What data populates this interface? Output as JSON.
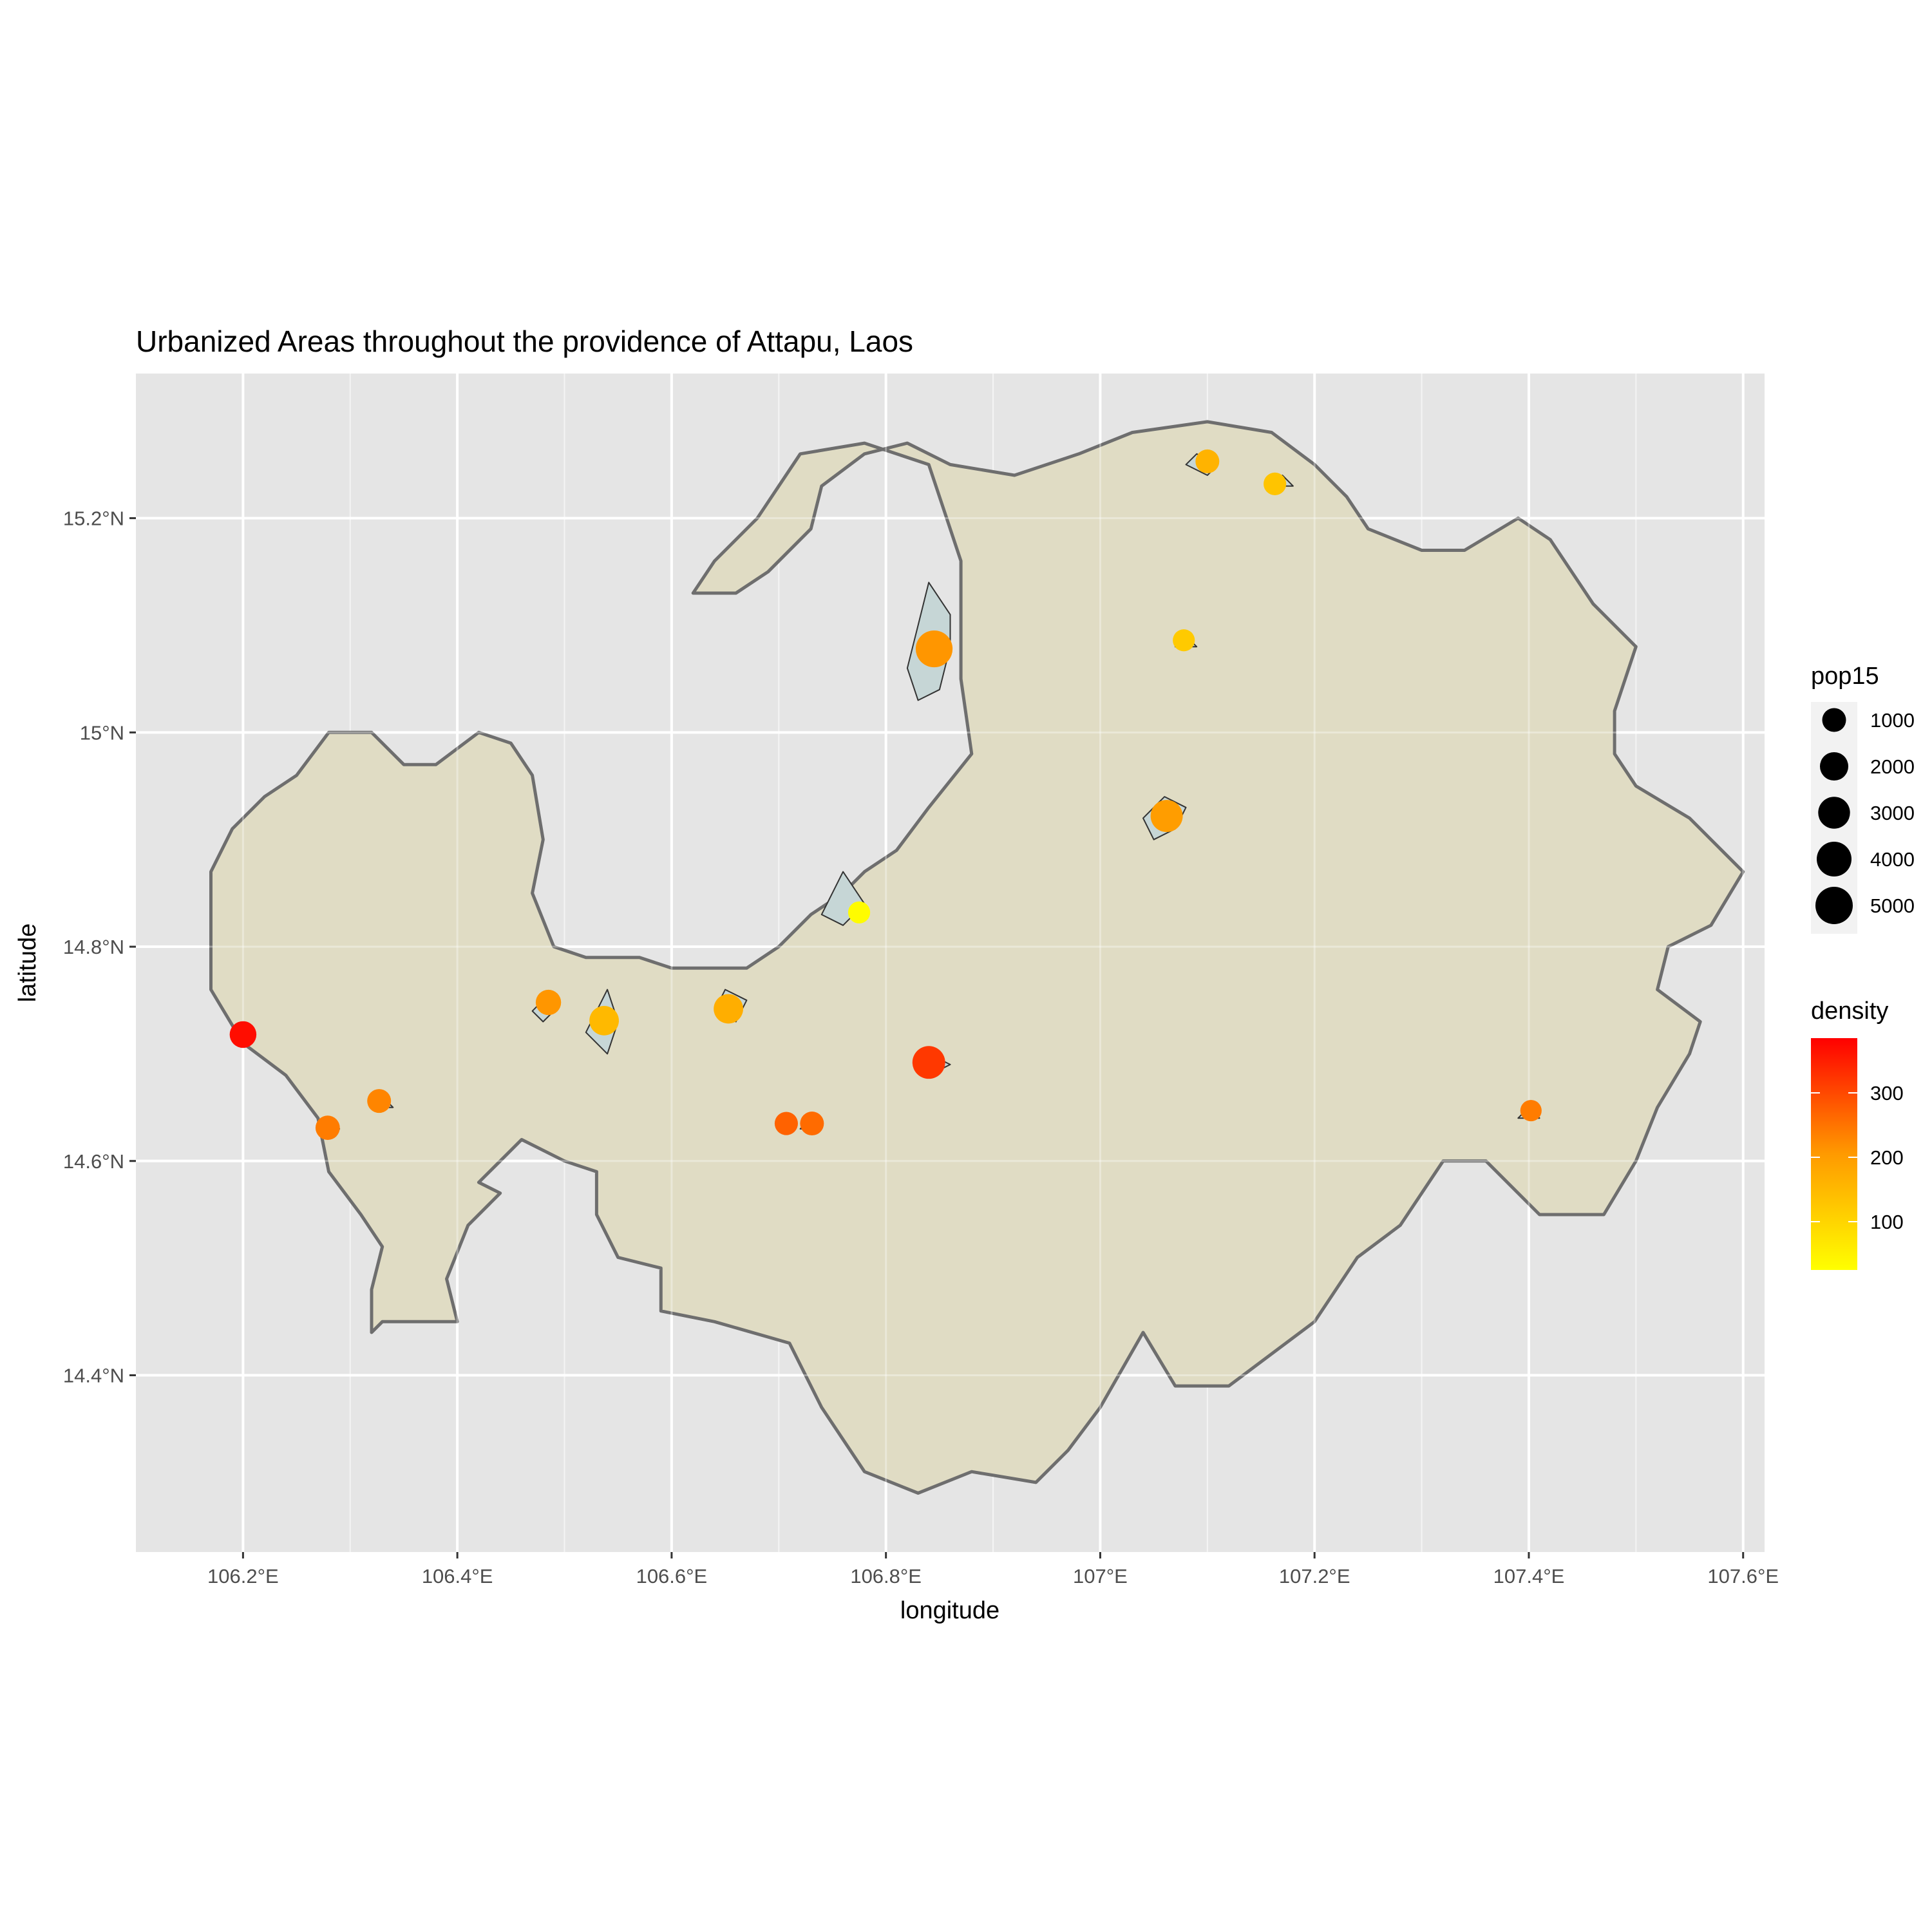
{
  "chart_data": {
    "type": "scatter",
    "title": "Urbanized Areas throughout the providence of Attapu, Laos",
    "xlabel": "longitude",
    "ylabel": "latitude",
    "xlim": [
      106.1,
      107.62
    ],
    "ylim": [
      14.235,
      15.335
    ],
    "x_ticks": [
      {
        "value": 106.2,
        "label": "106.2°E"
      },
      {
        "value": 106.4,
        "label": "106.4°E"
      },
      {
        "value": 106.6,
        "label": "106.6°E"
      },
      {
        "value": 106.8,
        "label": "106.8°E"
      },
      {
        "value": 107.0,
        "label": "107°E"
      },
      {
        "value": 107.2,
        "label": "107.2°E"
      },
      {
        "value": 107.4,
        "label": "107.4°E"
      },
      {
        "value": 107.6,
        "label": "107.6°E"
      }
    ],
    "y_ticks": [
      {
        "value": 14.4,
        "label": "14.4°N"
      },
      {
        "value": 14.6,
        "label": "14.6°N"
      },
      {
        "value": 14.8,
        "label": "14.8°N"
      },
      {
        "value": 15.0,
        "label": "15°N"
      },
      {
        "value": 15.2,
        "label": "15.2°N"
      }
    ],
    "grid": true,
    "colors": {
      "panel_background": "#e5e5e5",
      "grid": "#ffffff",
      "province_fill": "#e0dcc4",
      "province_border": "#6e6e6e",
      "urban_fill": "#c6d6d6",
      "urban_border": "#333333",
      "density_low": "#ffff00",
      "density_high": "#ff0000"
    },
    "province_outline": [
      [
        106.32,
        14.44
      ],
      [
        106.33,
        14.45
      ],
      [
        106.36,
        14.45
      ],
      [
        106.4,
        14.45
      ],
      [
        106.39,
        14.49
      ],
      [
        106.41,
        14.54
      ],
      [
        106.43,
        14.56
      ],
      [
        106.44,
        14.57
      ],
      [
        106.42,
        14.58
      ],
      [
        106.44,
        14.6
      ],
      [
        106.46,
        14.62
      ],
      [
        106.5,
        14.6
      ],
      [
        106.53,
        14.59
      ],
      [
        106.53,
        14.55
      ],
      [
        106.55,
        14.51
      ],
      [
        106.59,
        14.5
      ],
      [
        106.59,
        14.46
      ],
      [
        106.64,
        14.45
      ],
      [
        106.71,
        14.43
      ],
      [
        106.74,
        14.37
      ],
      [
        106.78,
        14.31
      ],
      [
        106.83,
        14.29
      ],
      [
        106.88,
        14.31
      ],
      [
        106.94,
        14.3
      ],
      [
        106.97,
        14.33
      ],
      [
        107.0,
        14.37
      ],
      [
        107.04,
        14.44
      ],
      [
        107.07,
        14.39
      ],
      [
        107.12,
        14.39
      ],
      [
        107.16,
        14.42
      ],
      [
        107.2,
        14.45
      ],
      [
        107.24,
        14.51
      ],
      [
        107.28,
        14.54
      ],
      [
        107.32,
        14.6
      ],
      [
        107.36,
        14.6
      ],
      [
        107.41,
        14.55
      ],
      [
        107.47,
        14.55
      ],
      [
        107.5,
        14.6
      ],
      [
        107.52,
        14.65
      ],
      [
        107.55,
        14.7
      ],
      [
        107.56,
        14.73
      ],
      [
        107.52,
        14.76
      ],
      [
        107.53,
        14.8
      ],
      [
        107.57,
        14.82
      ],
      [
        107.6,
        14.87
      ],
      [
        107.58,
        14.89
      ],
      [
        107.55,
        14.92
      ],
      [
        107.5,
        14.95
      ],
      [
        107.48,
        14.98
      ],
      [
        107.48,
        15.02
      ],
      [
        107.5,
        15.08
      ],
      [
        107.46,
        15.12
      ],
      [
        107.42,
        15.18
      ],
      [
        107.39,
        15.2
      ],
      [
        107.34,
        15.17
      ],
      [
        107.3,
        15.17
      ],
      [
        107.25,
        15.19
      ],
      [
        107.23,
        15.22
      ],
      [
        107.2,
        15.25
      ],
      [
        107.16,
        15.28
      ],
      [
        107.1,
        15.29
      ],
      [
        107.03,
        15.28
      ],
      [
        106.98,
        15.26
      ],
      [
        106.92,
        15.24
      ],
      [
        106.86,
        15.25
      ],
      [
        106.82,
        15.27
      ],
      [
        106.78,
        15.26
      ],
      [
        106.74,
        15.23
      ],
      [
        106.73,
        15.19
      ],
      [
        106.69,
        15.15
      ],
      [
        106.66,
        15.13
      ],
      [
        106.62,
        15.13
      ],
      [
        106.64,
        15.16
      ],
      [
        106.68,
        15.2
      ],
      [
        106.7,
        15.23
      ],
      [
        106.72,
        15.26
      ],
      [
        106.78,
        15.27
      ],
      [
        106.84,
        15.25
      ],
      [
        106.87,
        15.16
      ],
      [
        106.87,
        15.05
      ],
      [
        106.88,
        14.98
      ],
      [
        106.84,
        14.93
      ],
      [
        106.81,
        14.89
      ],
      [
        106.78,
        14.87
      ],
      [
        106.76,
        14.85
      ],
      [
        106.73,
        14.83
      ],
      [
        106.7,
        14.8
      ],
      [
        106.67,
        14.78
      ],
      [
        106.64,
        14.78
      ],
      [
        106.6,
        14.78
      ],
      [
        106.57,
        14.79
      ],
      [
        106.52,
        14.79
      ],
      [
        106.49,
        14.8
      ],
      [
        106.47,
        14.85
      ],
      [
        106.48,
        14.9
      ],
      [
        106.47,
        14.96
      ],
      [
        106.45,
        14.99
      ],
      [
        106.42,
        15.0
      ],
      [
        106.38,
        14.97
      ],
      [
        106.35,
        14.97
      ],
      [
        106.32,
        15.0
      ],
      [
        106.28,
        15.0
      ],
      [
        106.25,
        14.96
      ],
      [
        106.22,
        14.94
      ],
      [
        106.19,
        14.91
      ],
      [
        106.17,
        14.87
      ],
      [
        106.17,
        14.82
      ],
      [
        106.17,
        14.76
      ],
      [
        106.2,
        14.71
      ],
      [
        106.24,
        14.68
      ],
      [
        106.27,
        14.64
      ],
      [
        106.28,
        14.59
      ],
      [
        106.31,
        14.55
      ],
      [
        106.33,
        14.52
      ],
      [
        106.32,
        14.48
      ],
      [
        106.32,
        14.44
      ]
    ],
    "urban_areas": [
      [
        [
          106.84,
          15.14
        ],
        [
          106.86,
          15.11
        ],
        [
          106.86,
          15.08
        ],
        [
          106.85,
          15.04
        ],
        [
          106.83,
          15.03
        ],
        [
          106.82,
          15.06
        ],
        [
          106.83,
          15.1
        ],
        [
          106.84,
          15.14
        ]
      ],
      [
        [
          107.06,
          14.94
        ],
        [
          107.08,
          14.93
        ],
        [
          107.07,
          14.91
        ],
        [
          107.05,
          14.9
        ],
        [
          107.04,
          14.92
        ],
        [
          107.06,
          14.94
        ]
      ],
      [
        [
          106.76,
          14.87
        ],
        [
          106.78,
          14.84
        ],
        [
          106.76,
          14.82
        ],
        [
          106.74,
          14.83
        ],
        [
          106.76,
          14.87
        ]
      ],
      [
        [
          106.65,
          14.76
        ],
        [
          106.67,
          14.75
        ],
        [
          106.66,
          14.73
        ],
        [
          106.64,
          14.74
        ],
        [
          106.65,
          14.76
        ]
      ],
      [
        [
          106.54,
          14.76
        ],
        [
          106.55,
          14.73
        ],
        [
          106.54,
          14.7
        ],
        [
          106.52,
          14.72
        ],
        [
          106.54,
          14.76
        ]
      ],
      [
        [
          106.48,
          14.75
        ],
        [
          106.49,
          14.74
        ],
        [
          106.48,
          14.73
        ],
        [
          106.47,
          14.74
        ],
        [
          106.48,
          14.75
        ]
      ],
      [
        [
          106.84,
          14.7
        ],
        [
          106.86,
          14.69
        ],
        [
          106.84,
          14.68
        ],
        [
          106.83,
          14.69
        ],
        [
          106.84,
          14.7
        ]
      ],
      [
        [
          107.09,
          15.26
        ],
        [
          107.11,
          15.25
        ],
        [
          107.1,
          15.24
        ],
        [
          107.08,
          15.25
        ],
        [
          107.09,
          15.26
        ]
      ],
      [
        [
          107.17,
          15.24
        ],
        [
          107.18,
          15.23
        ],
        [
          107.16,
          15.23
        ],
        [
          107.17,
          15.24
        ]
      ],
      [
        [
          107.08,
          15.09
        ],
        [
          107.09,
          15.08
        ],
        [
          107.07,
          15.08
        ],
        [
          107.08,
          15.09
        ]
      ],
      [
        [
          106.28,
          14.64
        ],
        [
          106.29,
          14.63
        ],
        [
          106.27,
          14.63
        ],
        [
          106.28,
          14.64
        ]
      ],
      [
        [
          106.33,
          14.66
        ],
        [
          106.34,
          14.65
        ],
        [
          106.32,
          14.65
        ],
        [
          106.33,
          14.66
        ]
      ],
      [
        [
          106.73,
          14.64
        ],
        [
          106.74,
          14.63
        ],
        [
          106.72,
          14.63
        ],
        [
          106.73,
          14.64
        ]
      ],
      [
        [
          107.4,
          14.65
        ],
        [
          107.41,
          14.64
        ],
        [
          107.39,
          14.64
        ],
        [
          107.4,
          14.65
        ]
      ]
    ],
    "points": [
      {
        "lon": 106.845,
        "lat": 15.078,
        "pop15": 4800,
        "density": 210
      },
      {
        "lon": 107.062,
        "lat": 14.922,
        "pop15": 3100,
        "density": 200
      },
      {
        "lon": 106.84,
        "lat": 14.692,
        "pop15": 3300,
        "density": 320
      },
      {
        "lon": 106.653,
        "lat": 14.742,
        "pop15": 2300,
        "density": 170
      },
      {
        "lon": 106.537,
        "lat": 14.731,
        "pop15": 2300,
        "density": 150
      },
      {
        "lon": 106.2,
        "lat": 14.718,
        "pop15": 1600,
        "density": 370
      },
      {
        "lon": 106.485,
        "lat": 14.748,
        "pop15": 1300,
        "density": 210
      },
      {
        "lon": 106.279,
        "lat": 14.631,
        "pop15": 1100,
        "density": 240
      },
      {
        "lon": 106.327,
        "lat": 14.656,
        "pop15": 1000,
        "density": 230
      },
      {
        "lon": 106.707,
        "lat": 14.635,
        "pop15": 900,
        "density": 270
      },
      {
        "lon": 106.731,
        "lat": 14.635,
        "pop15": 1000,
        "density": 260
      },
      {
        "lon": 107.1,
        "lat": 15.253,
        "pop15": 1000,
        "density": 160
      },
      {
        "lon": 107.163,
        "lat": 15.232,
        "pop15": 800,
        "density": 130
      },
      {
        "lon": 107.078,
        "lat": 15.086,
        "pop15": 700,
        "density": 120
      },
      {
        "lon": 106.775,
        "lat": 14.832,
        "pop15": 700,
        "density": 30
      },
      {
        "lon": 107.402,
        "lat": 14.647,
        "pop15": 600,
        "density": 240
      }
    ],
    "legend": {
      "placement": "right",
      "size": {
        "title": "pop15",
        "values": [
          1000,
          2000,
          3000,
          4000,
          5000
        ],
        "labels": [
          "1000",
          "2000",
          "3000",
          "4000",
          "5000"
        ]
      },
      "color": {
        "title": "density",
        "range": [
          25,
          385
        ],
        "ticks": [
          100,
          200,
          300
        ],
        "labels": [
          "100",
          "200",
          "300"
        ]
      }
    }
  }
}
